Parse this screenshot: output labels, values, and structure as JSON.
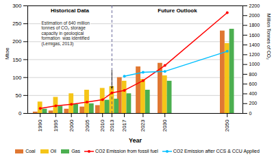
{
  "chart_data": {
    "type": "bar",
    "x": [
      1990,
      1995,
      2000,
      2005,
      2010,
      2013,
      2017,
      2023,
      2030,
      2050
    ],
    "xlim": [
      1986,
      2055
    ],
    "xticks": [
      1990,
      1995,
      2000,
      2005,
      2010,
      2013,
      2017,
      2023,
      2030,
      2050
    ],
    "ylim": [
      0,
      300
    ],
    "yticks": [
      0,
      50,
      100,
      150,
      200,
      250,
      300
    ],
    "y2lim": [
      0,
      2200
    ],
    "y2ticks": [
      0,
      200,
      400,
      600,
      800,
      1000,
      1200,
      1400,
      1600,
      1800,
      2000,
      2200
    ],
    "xlabel": "Year",
    "ylabel": "Mtoe",
    "y2label": "Million Tonnes of CO₂",
    "grid": true,
    "legend": "bottom",
    "series": [
      {
        "name": "Coal",
        "color": "#E07832",
        "values": [
          4,
          7,
          12,
          18,
          22,
          33,
          100,
          130,
          140,
          230
        ]
      },
      {
        "name": "Oil",
        "color": "#F5C518",
        "values": [
          32,
          45,
          55,
          65,
          70,
          75,
          90,
          95,
          105,
          195
        ]
      },
      {
        "name": "Gas",
        "color": "#4CAF50",
        "values": [
          12,
          20,
          25,
          27,
          37,
          40,
          55,
          65,
          90,
          235
        ]
      },
      {
        "name": "CO2 Emission from fossil fuel",
        "type": "line",
        "axis": "y2",
        "marker": "circle",
        "color": "#FF0000",
        "values": [
          100,
          155,
          185,
          230,
          280,
          420,
          470,
          670,
          980,
          2060
        ]
      },
      {
        "name": "CO2 Emission after CCS & CCU Applied",
        "type": "line",
        "axis": "y2",
        "marker": "circle",
        "color": "#00BFFF",
        "values": [
          null,
          null,
          null,
          null,
          null,
          null,
          760,
          840,
          860,
          1270
        ]
      }
    ],
    "divider": 2013,
    "section_labels": [
      "Historical Data",
      "Future Outlook"
    ],
    "annotation": "Estimation of 640 million\ntonnes of CO₂ storage\ncapacity in geological\nformation  was identified\n(Lemigas, 2013)"
  }
}
